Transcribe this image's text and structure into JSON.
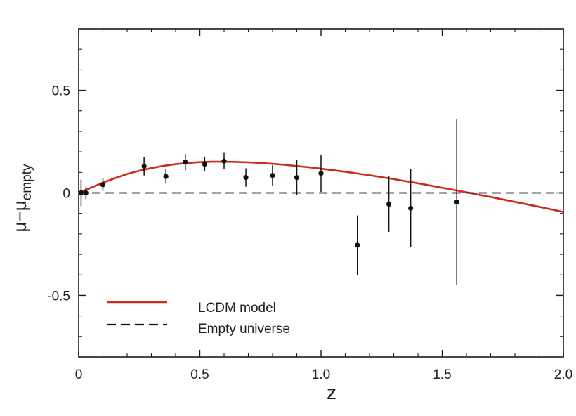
{
  "chart_data": {
    "type": "scatter",
    "title": "",
    "xlabel": "z",
    "ylabel": {
      "main": "μ−μ",
      "subscript": "empty"
    },
    "xlim": [
      0,
      2.0
    ],
    "ylim": [
      -0.8,
      0.8
    ],
    "x_ticks": [
      0,
      0.5,
      1.0,
      1.5,
      2.0
    ],
    "x_tick_labels": [
      "0",
      "0.5",
      "1.0",
      "1.5",
      "2.0"
    ],
    "y_ticks": [
      -0.5,
      0,
      0.5
    ],
    "y_tick_labels": [
      "-0.5",
      "0",
      "0.5"
    ],
    "grid": false,
    "legend_position": "bottom-left",
    "series": [
      {
        "name": "LCDM model",
        "kind": "line",
        "style": "solid",
        "color": "#cc2a1e",
        "x": [
          0,
          0.05,
          0.1,
          0.15,
          0.2,
          0.25,
          0.3,
          0.35,
          0.4,
          0.45,
          0.5,
          0.55,
          0.6,
          0.65,
          0.7,
          0.75,
          0.8,
          0.85,
          0.9,
          0.95,
          1.0,
          1.1,
          1.2,
          1.3,
          1.4,
          1.5,
          1.6,
          1.7,
          1.8,
          1.9,
          2.0
        ],
        "y": [
          0.0,
          0.025,
          0.05,
          0.072,
          0.092,
          0.108,
          0.121,
          0.132,
          0.14,
          0.146,
          0.15,
          0.152,
          0.152,
          0.151,
          0.149,
          0.146,
          0.142,
          0.137,
          0.131,
          0.125,
          0.118,
          0.103,
          0.086,
          0.067,
          0.047,
          0.025,
          0.003,
          -0.02,
          -0.044,
          -0.068,
          -0.093
        ]
      },
      {
        "name": "Empty universe",
        "kind": "line",
        "style": "dashed",
        "color": "#111111",
        "x": [
          0,
          2.0
        ],
        "y": [
          0,
          0
        ]
      }
    ],
    "points": {
      "name": "data",
      "color": "#111111",
      "x": [
        0.01,
        0.03,
        0.1,
        0.27,
        0.36,
        0.44,
        0.52,
        0.6,
        0.69,
        0.8,
        0.9,
        1.0,
        1.15,
        1.28,
        1.37,
        1.56
      ],
      "y": [
        0.0,
        0.0,
        0.04,
        0.13,
        0.08,
        0.15,
        0.14,
        0.155,
        0.075,
        0.085,
        0.075,
        0.095,
        -0.255,
        -0.055,
        -0.075,
        -0.045
      ],
      "err": [
        0.065,
        0.03,
        0.03,
        0.045,
        0.035,
        0.04,
        0.035,
        0.04,
        0.045,
        0.05,
        0.085,
        0.09,
        0.145,
        0.135,
        0.19,
        0.405
      ]
    }
  }
}
